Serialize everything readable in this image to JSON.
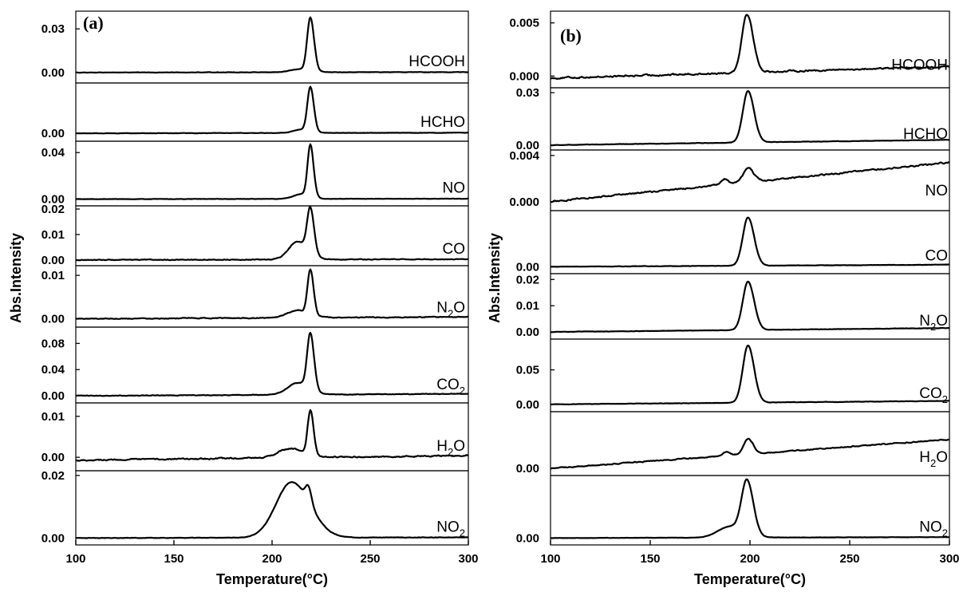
{
  "chart_data": [
    {
      "type": "line",
      "panel_label": "(a)",
      "xlabel": "Temperature(°C)",
      "ylabel": "Abs.Intensity",
      "xlim": [
        100,
        300
      ],
      "x_ticks": [
        "100",
        "150",
        "200",
        "250",
        "300"
      ],
      "x_tick_values": [
        100,
        150,
        200,
        250,
        300
      ],
      "subplots": [
        {
          "name": "HCOOH",
          "sub": "",
          "ylim": [
            -0.005,
            0.04
          ],
          "yticks": [
            0.0,
            0.03
          ],
          "ytick_labels": [
            "0.00",
            "0.03"
          ],
          "baseline": 0.0,
          "baseline_end": 0.0003,
          "noise": 0.00025,
          "peaks": [
            {
              "x": 219.5,
              "height": 0.0365,
              "width": 1.6
            },
            {
              "x": 214,
              "height": 0.002,
              "width": 5
            }
          ]
        },
        {
          "name": "HCHO",
          "sub": "",
          "ylim": [
            -0.004,
            0.04
          ],
          "yticks": [
            0.0
          ],
          "ytick_labels": [
            "0.00"
          ],
          "baseline": 0.0,
          "baseline_end": 0.0005,
          "noise": 0.00025,
          "peaks": [
            {
              "x": 219.5,
              "height": 0.0375,
              "width": 1.5
            },
            {
              "x": 215,
              "height": 0.003,
              "width": 4
            }
          ]
        },
        {
          "name": "NO",
          "sub": "",
          "ylim": [
            -0.003,
            0.047
          ],
          "yticks": [
            0.0,
            0.04
          ],
          "ytick_labels": [
            "0.00",
            "0.04"
          ],
          "baseline": 0.0,
          "baseline_end": 0.0004,
          "noise": 0.0003,
          "peaks": [
            {
              "x": 219.5,
              "height": 0.0445,
              "width": 1.4
            },
            {
              "x": 215,
              "height": 0.004,
              "width": 4
            }
          ]
        },
        {
          "name": "CO",
          "sub": "",
          "ylim": [
            -0.001,
            0.02
          ],
          "yticks": [
            0.0,
            0.01,
            0.02
          ],
          "ytick_labels": [
            "0.00",
            "0.01",
            "0.02"
          ],
          "baseline": 0.0,
          "baseline_end": 0.0003,
          "noise": 0.00025,
          "peaks": [
            {
              "x": 219.5,
              "height": 0.0175,
              "width": 1.6
            },
            {
              "x": 213,
              "height": 0.007,
              "width": 4.5
            }
          ]
        },
        {
          "name": "N",
          "sub": "2",
          "suffix": "O",
          "ylim": [
            -0.0012,
            0.0115
          ],
          "yticks": [
            0.0,
            0.01
          ],
          "ytick_labels": [
            "0.00",
            "0.01"
          ],
          "baseline": 0.0,
          "baseline_end": 0.0004,
          "noise": 0.00018,
          "peaks": [
            {
              "x": 219.5,
              "height": 0.0103,
              "width": 1.4
            },
            {
              "x": 213,
              "height": 0.0017,
              "width": 5
            }
          ]
        },
        {
          "name": "CO",
          "sub": "2",
          "suffix": "",
          "ylim": [
            -0.006,
            0.1
          ],
          "yticks": [
            0.0,
            0.04,
            0.08
          ],
          "ytick_labels": [
            "0.00",
            "0.04",
            "0.08"
          ],
          "baseline": 0.0,
          "baseline_end": 0.003,
          "noise": 0.0009,
          "peaks": [
            {
              "x": 219.5,
              "height": 0.085,
              "width": 1.6
            },
            {
              "x": 213,
              "height": 0.018,
              "width": 5
            }
          ]
        },
        {
          "name": "H",
          "sub": "2",
          "suffix": "O",
          "ylim": [
            -0.0025,
            0.0125
          ],
          "yticks": [
            0.0,
            0.01
          ],
          "ytick_labels": [
            "0.00",
            "0.01"
          ],
          "baseline": -0.0007,
          "baseline_end": 0.0004,
          "noise": 0.0003,
          "peaks": [
            {
              "x": 219.5,
              "height": 0.0108,
              "width": 1.4
            },
            {
              "x": 209,
              "height": 0.0022,
              "width": 6
            }
          ]
        },
        {
          "name": "NO",
          "sub": "2",
          "suffix": "",
          "ylim": [
            -0.0012,
            0.0205
          ],
          "yticks": [
            0.0,
            0.02
          ],
          "ytick_labels": [
            "0.00",
            "0.02"
          ],
          "baseline": 0.0,
          "baseline_end": 0.0002,
          "noise": 0.00015,
          "peaks": [
            {
              "x": 210,
              "height": 0.0178,
              "width": 8
            },
            {
              "x": 218.5,
              "height": 0.0048,
              "width": 1.4
            }
          ]
        }
      ]
    },
    {
      "type": "line",
      "panel_label": "(b)",
      "xlabel": "Temperature(°C)",
      "ylabel": "Abs.Intensity",
      "xlim": [
        100,
        300
      ],
      "x_ticks": [
        "100",
        "150",
        "200",
        "250",
        "300"
      ],
      "x_tick_values": [
        100,
        150,
        200,
        250,
        300
      ],
      "subplots": [
        {
          "name": "HCOOH",
          "sub": "",
          "ylim": [
            -0.0008,
            0.0058
          ],
          "yticks": [
            0.0,
            0.005
          ],
          "ytick_labels": [
            "0.000",
            "0.005"
          ],
          "baseline": -0.0002,
          "baseline_end": 0.0009,
          "noise": 0.00015,
          "peaks": [
            {
              "x": 198.5,
              "height": 0.0055,
              "width": 2.6
            }
          ]
        },
        {
          "name": "HCHO",
          "sub": "",
          "ylim": [
            -0.001,
            0.031
          ],
          "yticks": [
            0.0,
            0.03
          ],
          "ytick_labels": [
            "0.00",
            "0.03"
          ],
          "baseline": 0.0,
          "baseline_end": 0.003,
          "noise": 0.0002,
          "peaks": [
            {
              "x": 199,
              "height": 0.0295,
              "width": 2.6
            }
          ]
        },
        {
          "name": "NO",
          "sub": "",
          "ylim": [
            -0.0005,
            0.0042
          ],
          "yticks": [
            0.0,
            0.004
          ],
          "ytick_labels": [
            "0.000",
            "0.004"
          ],
          "baseline": 0.0,
          "baseline_end": 0.0034,
          "noise": 0.00012,
          "peaks": [
            {
              "x": 199,
              "height": 0.0012,
              "width": 2.4
            },
            {
              "x": 187,
              "height": 0.0005,
              "width": 1.5
            }
          ]
        },
        {
          "name": "CO",
          "sub": "",
          "ylim": [
            -0.0015,
            0.021
          ],
          "yticks": [
            0.0
          ],
          "ytick_labels": [
            "0.00"
          ],
          "baseline": 0.0,
          "baseline_end": 0.0008,
          "noise": 0.00012,
          "peaks": [
            {
              "x": 199,
              "height": 0.0192,
              "width": 2.6
            }
          ]
        },
        {
          "name": "N",
          "sub": "2",
          "suffix": "O",
          "ylim": [
            -0.0015,
            0.021
          ],
          "yticks": [
            0.0,
            0.01,
            0.02
          ],
          "ytick_labels": [
            "0.00",
            "0.01",
            "0.02"
          ],
          "baseline": 0.0,
          "baseline_end": 0.0015,
          "noise": 0.00012,
          "peaks": [
            {
              "x": 199,
              "height": 0.0185,
              "width": 2.6
            }
          ]
        },
        {
          "name": "CO",
          "sub": "2",
          "suffix": "",
          "ylim": [
            -0.006,
            0.09
          ],
          "yticks": [
            0.0,
            0.05
          ],
          "ytick_labels": [
            "0.00",
            "0.05"
          ],
          "baseline": 0.0,
          "baseline_end": 0.005,
          "noise": 0.0005,
          "peaks": [
            {
              "x": 199,
              "height": 0.083,
              "width": 2.6
            }
          ]
        },
        {
          "name": "H",
          "sub": "2",
          "suffix": "O",
          "ylim": [
            -0.0005,
            0.007
          ],
          "yticks": [
            0.0
          ],
          "ytick_labels": [
            "0.00"
          ],
          "baseline": 0.0,
          "baseline_end": 0.0038,
          "noise": 0.00012,
          "peaks": [
            {
              "x": 199,
              "height": 0.002,
              "width": 2.2
            },
            {
              "x": 188,
              "height": 0.0005,
              "width": 1.6
            }
          ]
        },
        {
          "name": "NO",
          "sub": "2",
          "suffix": "",
          "ylim": [
            -0.002,
            0.032
          ],
          "yticks": [
            0.0
          ],
          "ytick_labels": [
            "0.00"
          ],
          "baseline": 0.0,
          "baseline_end": 0.0005,
          "noise": 0.00012,
          "peaks": [
            {
              "x": 198.5,
              "height": 0.0285,
              "width": 2.7
            },
            {
              "x": 190,
              "height": 0.006,
              "width": 6
            }
          ]
        }
      ]
    }
  ]
}
